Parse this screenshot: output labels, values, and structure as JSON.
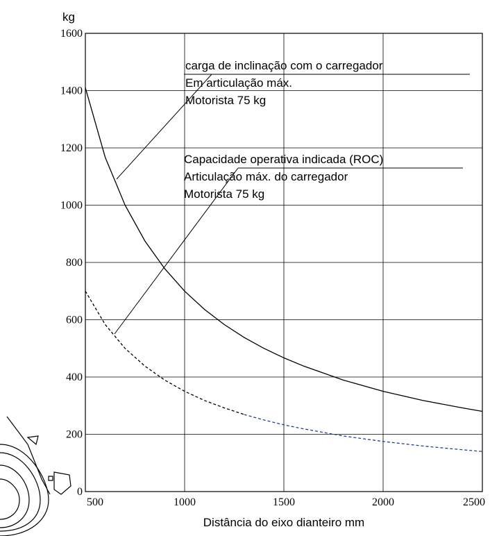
{
  "chart_data": {
    "type": "line",
    "y_unit": "kg",
    "x_label": "Distância do eixo dianteiro mm",
    "x": [
      500,
      600,
      700,
      800,
      900,
      1000,
      1100,
      1200,
      1300,
      1400,
      1500,
      1600,
      1800,
      2000,
      2200,
      2400,
      2500
    ],
    "series": [
      {
        "color": "#000000",
        "dash": false,
        "values": [
          1410,
          1167,
          1000,
          875,
          778,
          700,
          636,
          583,
          538,
          500,
          467,
          438,
          389,
          350,
          318,
          292,
          280
        ]
      },
      {
        "color": "#000000",
        "dash": true,
        "values": [
          700,
          583,
          500,
          438,
          389,
          350,
          318,
          292,
          269,
          null,
          null,
          null,
          null,
          null,
          null,
          null,
          null
        ]
      },
      {
        "color": "#1f3f8f",
        "dash": true,
        "values": [
          null,
          null,
          null,
          null,
          null,
          null,
          null,
          null,
          269,
          250,
          233,
          219,
          194,
          175,
          159,
          146,
          140
        ]
      }
    ],
    "annotations": [
      [
        "carga de inclinação com o carregador",
        "Em articulação máx.",
        "Motorista 75 kg"
      ],
      [
        "Capacidade operativa indicada (ROC)",
        "Articulação máx. do carregador",
        "Motorista 75 kg"
      ]
    ],
    "xlim": [
      500,
      2500
    ],
    "ylim": [
      0,
      1600
    ],
    "xticks": [
      500,
      1000,
      1500,
      2000,
      2500
    ],
    "yticks": [
      0,
      200,
      400,
      600,
      800,
      1000,
      1200,
      1400,
      1600
    ],
    "grid": true
  }
}
